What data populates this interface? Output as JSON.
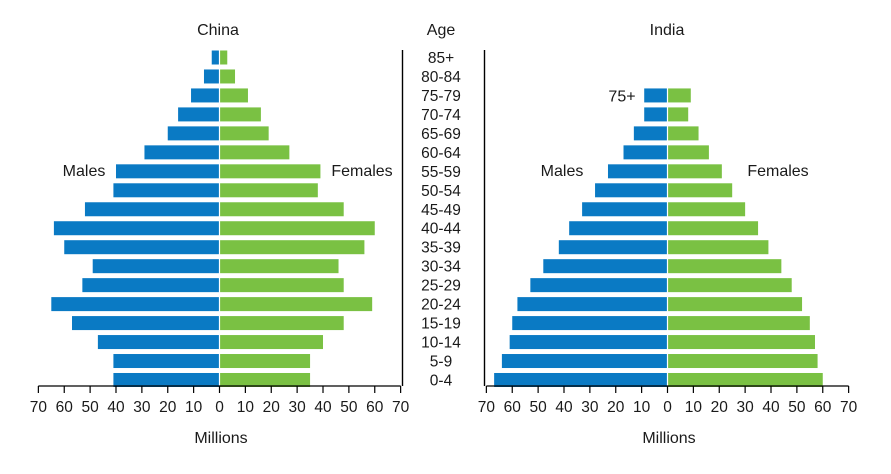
{
  "age_header": "Age",
  "age_groups": [
    "85+",
    "80-84",
    "75-79",
    "70-74",
    "65-69",
    "60-64",
    "55-59",
    "50-54",
    "45-49",
    "40-44",
    "35-39",
    "30-34",
    "25-29",
    "20-24",
    "15-19",
    "10-14",
    "5-9",
    "0-4"
  ],
  "axis_ticks": [
    "70",
    "60",
    "50",
    "40",
    "30",
    "20",
    "10",
    "0",
    "10",
    "20",
    "30",
    "40",
    "50",
    "60",
    "70"
  ],
  "colors": {
    "male": "#0a7ac4",
    "female": "#7ac143",
    "axis": "#000000",
    "text": "#1a1a1a"
  },
  "chart_data": [
    {
      "type": "bar",
      "orientation": "horizontal",
      "title": "China",
      "xlabel": "Millions",
      "ylabel": "Age",
      "xlim": [
        -70,
        70
      ],
      "categories": [
        "85+",
        "80-84",
        "75-79",
        "70-74",
        "65-69",
        "60-64",
        "55-59",
        "50-54",
        "45-49",
        "40-44",
        "35-39",
        "30-34",
        "25-29",
        "20-24",
        "15-19",
        "10-14",
        "5-9",
        "0-4"
      ],
      "series": [
        {
          "name": "Males",
          "values": [
            3,
            6,
            11,
            16,
            20,
            29,
            40,
            41,
            52,
            64,
            60,
            49,
            53,
            65,
            57,
            47,
            41,
            41
          ]
        },
        {
          "name": "Females",
          "values": [
            3,
            6,
            11,
            16,
            19,
            27,
            39,
            38,
            48,
            60,
            56,
            46,
            48,
            59,
            48,
            40,
            35,
            35
          ]
        }
      ],
      "annotations": [
        "Males",
        "Females"
      ],
      "annotation_label": ""
    },
    {
      "type": "bar",
      "orientation": "horizontal",
      "title": "India",
      "xlabel": "Millions",
      "ylabel": "Age",
      "xlim": [
        -70,
        70
      ],
      "categories": [
        "75+",
        "70-74",
        "65-69",
        "60-64",
        "55-59",
        "50-54",
        "45-49",
        "40-44",
        "35-39",
        "30-34",
        "25-29",
        "20-24",
        "15-19",
        "10-14",
        "5-9",
        "0-4"
      ],
      "series": [
        {
          "name": "Males",
          "values": [
            9,
            9,
            13,
            17,
            23,
            28,
            33,
            38,
            42,
            48,
            53,
            58,
            60,
            61,
            64,
            67
          ]
        },
        {
          "name": "Females",
          "values": [
            9,
            8,
            12,
            16,
            21,
            25,
            30,
            35,
            39,
            44,
            48,
            52,
            55,
            57,
            58,
            60
          ]
        }
      ],
      "annotations": [
        "Males",
        "Females"
      ],
      "annotation_label": "75+"
    }
  ]
}
